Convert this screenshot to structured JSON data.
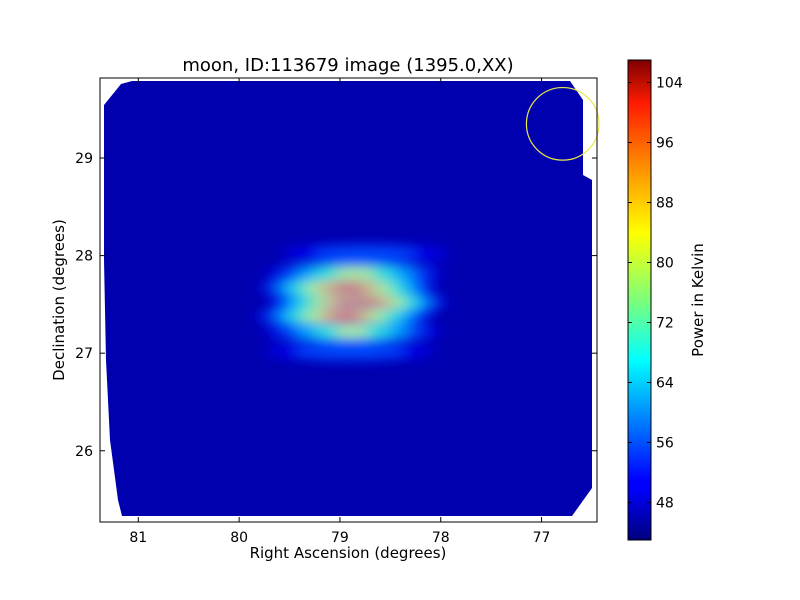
{
  "chart_data": {
    "type": "heatmap",
    "title": "moon, ID:113679 image (1395.0,XX)",
    "xlabel": "Right Ascension (degrees)",
    "ylabel": "Declination (degrees)",
    "x_inverted": true,
    "xlim": [
      81.38,
      76.45
    ],
    "ylim": [
      25.27,
      29.82
    ],
    "xticks": [
      81,
      80,
      79,
      78,
      77
    ],
    "yticks": [
      26,
      27,
      28,
      29
    ],
    "background_level": 46,
    "source_center": {
      "ra": 78.9,
      "dec": 27.52
    },
    "beam_marker": {
      "ra": 76.79,
      "dec": 29.35,
      "radius_deg": 0.36,
      "color": "#e8e84a"
    },
    "colorbar": {
      "label": "Power in Kelvin",
      "range": [
        43,
        107
      ],
      "ticks": [
        48,
        56,
        64,
        72,
        80,
        88,
        96,
        104
      ],
      "colormap": "jet"
    },
    "emission_bands": [
      {
        "dec": 28.02,
        "ra_center": 78.75,
        "peak": 58
      },
      {
        "dec": 27.82,
        "ra_center": 78.85,
        "peak": 82
      },
      {
        "dec": 27.67,
        "ra_center": 78.92,
        "peak": 103
      },
      {
        "dec": 27.52,
        "ra_center": 78.82,
        "peak": 107
      },
      {
        "dec": 27.38,
        "ra_center": 78.95,
        "peak": 100
      },
      {
        "dec": 27.22,
        "ra_center": 78.88,
        "peak": 80
      },
      {
        "dec": 27.02,
        "ra_center": 78.9,
        "peak": 60
      }
    ]
  }
}
